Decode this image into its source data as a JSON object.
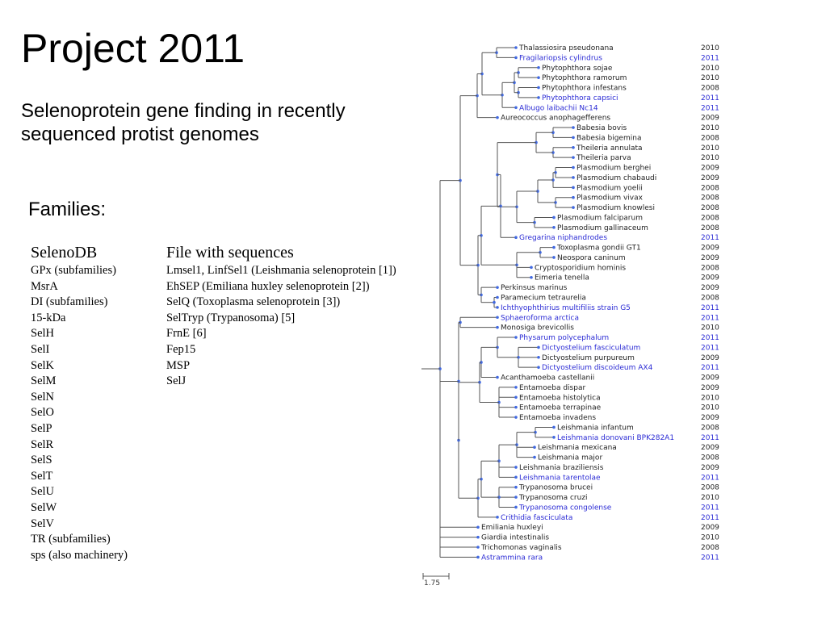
{
  "title": "Project 2011",
  "subtitle_lines": [
    "Selenoprotein gene finding in recently",
    "sequenced protist genomes"
  ],
  "families_label": "Families:",
  "selenodb": {
    "header": "SelenoDB",
    "items": [
      "GPx (subfamilies)",
      "MsrA",
      "DI (subfamilies)",
      "15-kDa",
      "SelH",
      "SelI",
      "SelK",
      "SelM",
      "SelN",
      "SelO",
      "SelP",
      "SelR",
      "SelS",
      "SelT",
      "SelU",
      "SelW",
      "SelV",
      "TR (subfamilies)",
      "sps (also machinery)"
    ]
  },
  "file_sequences": {
    "header": "File with sequences",
    "items": [
      "Lmsel1, LinfSel1 (Leishmania selenoprotein [1])",
      "EhSEP (Emiliana huxley selenoprotein [2])",
      "SelQ (Toxoplasma selenoprotein [3])",
      "SelTryp (Trypanosoma) [5]",
      "FrnE [6]",
      "Fep15",
      "MSP",
      "SelJ"
    ]
  },
  "tree": {
    "scale_label": "1.75",
    "colors": {
      "highlight": "#2a2ad4",
      "normal": "#222222",
      "node": "#4169e1"
    },
    "taxa": [
      {
        "name": "Thalassiosira pseudonana",
        "year": "2010",
        "hl": false
      },
      {
        "name": "Fragilariopsis cylindrus",
        "year": "2011",
        "hl": true
      },
      {
        "name": "Phytophthora sojae",
        "year": "2010",
        "hl": false
      },
      {
        "name": "Phytophthora ramorum",
        "year": "2010",
        "hl": false
      },
      {
        "name": "Phytophthora infestans",
        "year": "2008",
        "hl": false
      },
      {
        "name": "Phytophthora capsici",
        "year": "2011",
        "hl": true
      },
      {
        "name": "Albugo laibachii Nc14",
        "year": "2011",
        "hl": true
      },
      {
        "name": "Aureococcus anophagefferens",
        "year": "2009",
        "hl": false
      },
      {
        "name": "Babesia bovis",
        "year": "2010",
        "hl": false
      },
      {
        "name": "Babesia bigemina",
        "year": "2008",
        "hl": false
      },
      {
        "name": "Theileria annulata",
        "year": "2010",
        "hl": false
      },
      {
        "name": "Theileria parva",
        "year": "2010",
        "hl": false
      },
      {
        "name": "Plasmodium berghei",
        "year": "2009",
        "hl": false
      },
      {
        "name": "Plasmodium chabaudi",
        "year": "2009",
        "hl": false
      },
      {
        "name": "Plasmodium yoelii",
        "year": "2008",
        "hl": false
      },
      {
        "name": "Plasmodium vivax",
        "year": "2008",
        "hl": false
      },
      {
        "name": "Plasmodium knowlesi",
        "year": "2008",
        "hl": false
      },
      {
        "name": "Plasmodium falciparum",
        "year": "2008",
        "hl": false
      },
      {
        "name": "Plasmodium gallinaceum",
        "year": "2008",
        "hl": false
      },
      {
        "name": "Gregarina niphandrodes",
        "year": "2011",
        "hl": true
      },
      {
        "name": "Toxoplasma gondii GT1",
        "year": "2009",
        "hl": false
      },
      {
        "name": "Neospora caninum",
        "year": "2009",
        "hl": false
      },
      {
        "name": "Cryptosporidium hominis",
        "year": "2008",
        "hl": false
      },
      {
        "name": "Eimeria tenella",
        "year": "2009",
        "hl": false
      },
      {
        "name": "Perkinsus marinus",
        "year": "2009",
        "hl": false
      },
      {
        "name": "Paramecium tetraurelia",
        "year": "2008",
        "hl": false
      },
      {
        "name": "Ichthyophthirius multifiliis strain G5",
        "year": "2011",
        "hl": true
      },
      {
        "name": "Sphaeroforma arctica",
        "year": "2011",
        "hl": true
      },
      {
        "name": "Monosiga brevicollis",
        "year": "2010",
        "hl": false
      },
      {
        "name": "Physarum polycephalum",
        "year": "2011",
        "hl": true
      },
      {
        "name": "Dictyostelium fasciculatum",
        "year": "2011",
        "hl": true
      },
      {
        "name": "Dictyostelium purpureum",
        "year": "2009",
        "hl": false
      },
      {
        "name": "Dictyostelium discoideum AX4",
        "year": "2011",
        "hl": true
      },
      {
        "name": "Acanthamoeba castellanii",
        "year": "2009",
        "hl": false
      },
      {
        "name": "Entamoeba dispar",
        "year": "2009",
        "hl": false
      },
      {
        "name": "Entamoeba histolytica",
        "year": "2010",
        "hl": false
      },
      {
        "name": "Entamoeba terrapinae",
        "year": "2010",
        "hl": false
      },
      {
        "name": "Entamoeba invadens",
        "year": "2009",
        "hl": false
      },
      {
        "name": "Leishmania infantum",
        "year": "2008",
        "hl": false
      },
      {
        "name": "Leishmania donovani BPK282A1",
        "year": "2011",
        "hl": true
      },
      {
        "name": "Leishmania mexicana",
        "year": "2009",
        "hl": false
      },
      {
        "name": "Leishmania major",
        "year": "2008",
        "hl": false
      },
      {
        "name": "Leishmania braziliensis",
        "year": "2009",
        "hl": false
      },
      {
        "name": "Leishmania tarentolae",
        "year": "2011",
        "hl": true
      },
      {
        "name": "Trypanosoma brucei",
        "year": "2008",
        "hl": false
      },
      {
        "name": "Trypanosoma cruzi",
        "year": "2010",
        "hl": false
      },
      {
        "name": "Trypanosoma congolense",
        "year": "2011",
        "hl": true
      },
      {
        "name": "Crithidia fasciculata",
        "year": "2011",
        "hl": true
      },
      {
        "name": "Emiliania huxleyi",
        "year": "2009",
        "hl": false
      },
      {
        "name": "Giardia intestinalis",
        "year": "2010",
        "hl": false
      },
      {
        "name": "Trichomonas vaginalis",
        "year": "2008",
        "hl": false
      },
      {
        "name": "Astrammina rara",
        "year": "2011",
        "hl": true
      }
    ]
  }
}
